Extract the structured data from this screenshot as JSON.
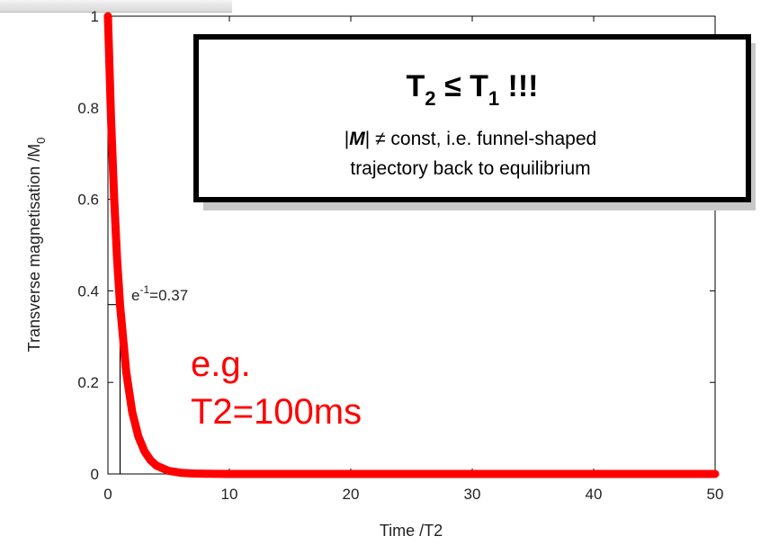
{
  "chart_data": {
    "type": "line",
    "xlabel": "Time /T2",
    "ylabel_main": "Transverse magnetisation /M",
    "ylabel_sub": "0",
    "xlim": [
      0,
      50
    ],
    "ylim": [
      0,
      1
    ],
    "x_ticks": [
      "0",
      "10",
      "20",
      "30",
      "40",
      "50"
    ],
    "y_ticks": [
      "0",
      "0.2",
      "0.4",
      "0.6",
      "0.8",
      "1"
    ],
    "series": [
      {
        "function": "exp(-t)",
        "color": "#ff0000",
        "x": [
          0,
          0.25,
          0.5,
          0.75,
          1,
          1.5,
          2,
          2.5,
          3,
          3.5,
          4,
          5,
          6,
          7,
          8,
          10,
          15,
          20,
          30,
          40,
          50
        ],
        "y": [
          1,
          0.779,
          0.607,
          0.472,
          0.368,
          0.223,
          0.135,
          0.082,
          0.05,
          0.03,
          0.018,
          0.0067,
          0.0025,
          0.0009,
          0.0003,
          5e-05,
          0,
          0,
          0,
          0,
          0
        ]
      }
    ],
    "marker": {
      "x": 1,
      "y": 0.37,
      "label_base": "e",
      "label_sup": "-1",
      "label_rest": "=0.37"
    },
    "annotation_line1": "e.g.",
    "annotation_line2": "T2=100ms"
  },
  "callout": {
    "title_T": "T",
    "title_sub1": "2",
    "title_mid": " ≤ T",
    "title_sub2": "1",
    "title_end": " !!!",
    "body_M": "M",
    "body_line1_rest": " ≠ const, i.e. funnel-shaped",
    "body_line2": "trajectory back to equilibrium"
  }
}
